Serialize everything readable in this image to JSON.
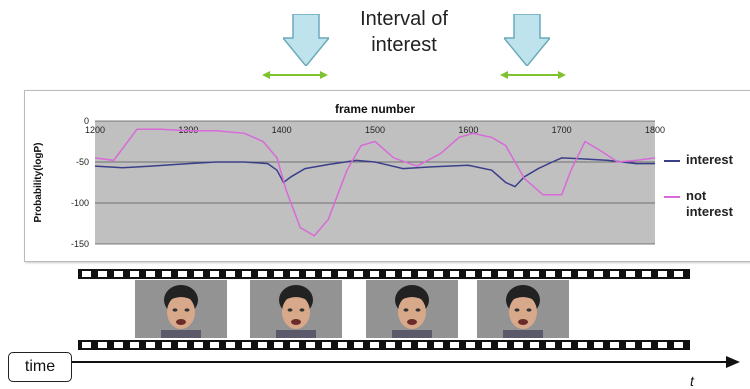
{
  "header": {
    "title_line1": "Interval of",
    "title_line2": "interest"
  },
  "colors": {
    "arrow_fill": "#bfe3ec",
    "arrow_stroke": "#6aaabb",
    "range_arrow": "#7fc230",
    "plot_bg": "#c0c0c0",
    "interest_series": "#3b3f8a",
    "not_interest_series": "#d86ad8",
    "film": "#111111"
  },
  "timeline": {
    "label": "time",
    "t_label": "t"
  },
  "legend": {
    "interest": "interest",
    "not_interest_line1": "not",
    "not_interest_line2": "interest"
  },
  "chart_data": {
    "type": "line",
    "xlabel": "frame number",
    "ylabel": "Probability(logP)",
    "x_ticks": [
      1200,
      1300,
      1400,
      1500,
      1600,
      1700,
      1800
    ],
    "y_ticks": [
      0,
      -50,
      -100,
      -150
    ],
    "xlim": [
      1200,
      1800
    ],
    "ylim": [
      -150,
      0
    ],
    "grid": true,
    "legend_position": "right",
    "series": [
      {
        "name": "interest",
        "color": "#3b3f8a",
        "x": [
          1200,
          1230,
          1260,
          1300,
          1330,
          1360,
          1385,
          1395,
          1402,
          1410,
          1425,
          1450,
          1480,
          1500,
          1530,
          1560,
          1600,
          1625,
          1640,
          1650,
          1660,
          1675,
          1690,
          1700,
          1720,
          1750,
          1780,
          1800
        ],
        "y": [
          -55,
          -57,
          -55,
          -52,
          -50,
          -50,
          -52,
          -60,
          -75,
          -68,
          -58,
          -53,
          -48,
          -50,
          -58,
          -56,
          -54,
          -60,
          -75,
          -80,
          -68,
          -58,
          -50,
          -45,
          -46,
          -48,
          -52,
          -52
        ]
      },
      {
        "name": "not interest",
        "color": "#d86ad8",
        "x": [
          1200,
          1220,
          1245,
          1270,
          1300,
          1330,
          1360,
          1380,
          1395,
          1405,
          1420,
          1435,
          1450,
          1470,
          1485,
          1500,
          1520,
          1545,
          1570,
          1590,
          1605,
          1625,
          1640,
          1650,
          1660,
          1680,
          1700,
          1710,
          1725,
          1740,
          1760,
          1780,
          1800
        ],
        "y": [
          -45,
          -48,
          -10,
          -10,
          -12,
          -12,
          -15,
          -25,
          -45,
          -85,
          -130,
          -140,
          -120,
          -60,
          -30,
          -25,
          -45,
          -55,
          -40,
          -20,
          -15,
          -20,
          -30,
          -50,
          -70,
          -90,
          -90,
          -60,
          -25,
          -35,
          -50,
          -48,
          -45
        ]
      }
    ]
  }
}
